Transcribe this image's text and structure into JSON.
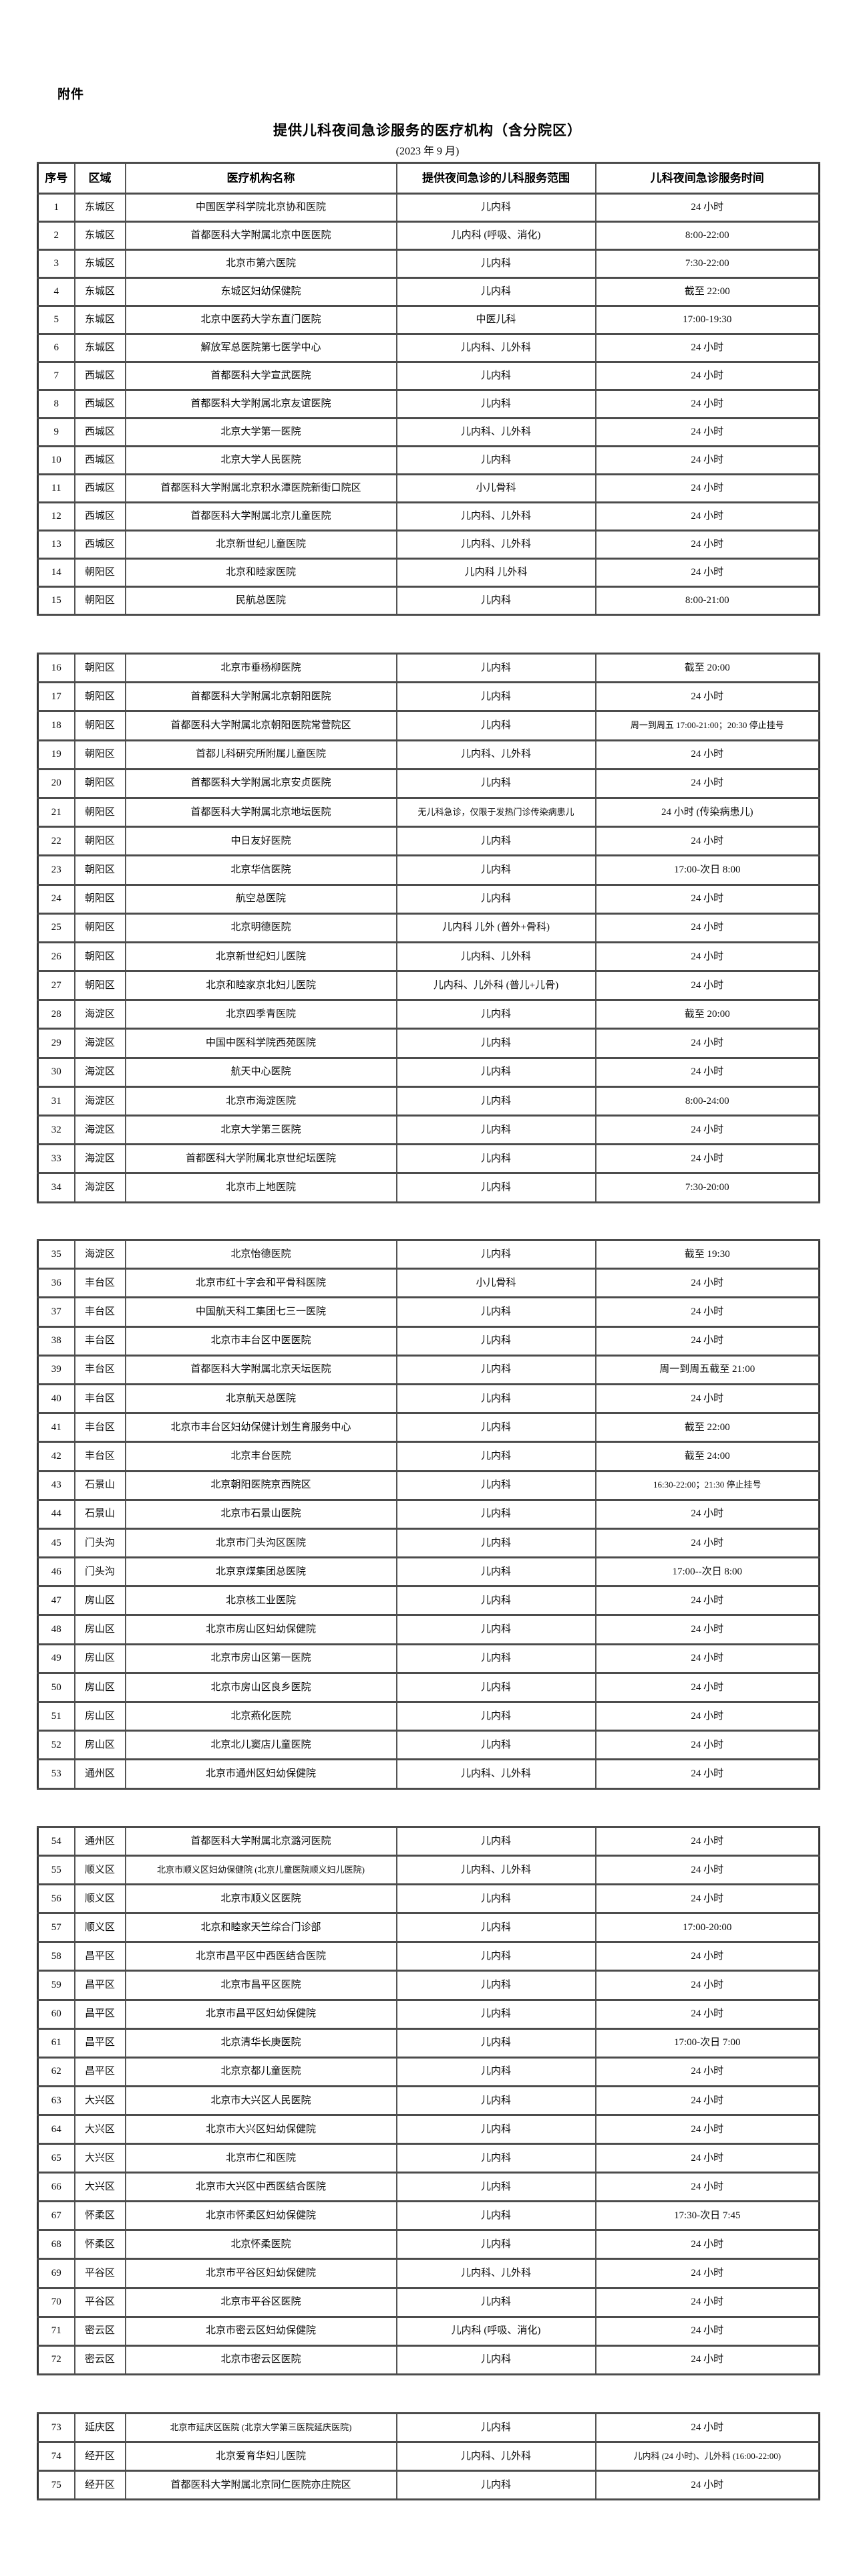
{
  "page": {
    "attachment_label": "附件",
    "title": "提供儿科夜间急诊服务的医疗机构（含分院区）",
    "subtitle": "(2023 年 9 月)"
  },
  "table": {
    "columns": [
      "序号",
      "区域",
      "医疗机构名称",
      "提供夜间急诊的儿科服务范围",
      "儿科夜间急诊服务时间"
    ],
    "sections": [
      {
        "has_header": true,
        "rows": [
          [
            "1",
            "东城区",
            "中国医学科学院北京协和医院",
            "儿内科",
            "24 小时"
          ],
          [
            "2",
            "东城区",
            "首都医科大学附属北京中医医院",
            "儿内科 (呼吸、消化)",
            "8:00-22:00"
          ],
          [
            "3",
            "东城区",
            "北京市第六医院",
            "儿内科",
            "7:30-22:00"
          ],
          [
            "4",
            "东城区",
            "东城区妇幼保健院",
            "儿内科",
            "截至 22:00"
          ],
          [
            "5",
            "东城区",
            "北京中医药大学东直门医院",
            "中医儿科",
            "17:00-19:30"
          ],
          [
            "6",
            "东城区",
            "解放军总医院第七医学中心",
            "儿内科、儿外科",
            "24 小时"
          ],
          [
            "7",
            "西城区",
            "首都医科大学宣武医院",
            "儿内科",
            "24 小时"
          ],
          [
            "8",
            "西城区",
            "首都医科大学附属北京友谊医院",
            "儿内科",
            "24 小时"
          ],
          [
            "9",
            "西城区",
            "北京大学第一医院",
            "儿内科、儿外科",
            "24 小时"
          ],
          [
            "10",
            "西城区",
            "北京大学人民医院",
            "儿内科",
            "24 小时"
          ],
          [
            "11",
            "西城区",
            "首都医科大学附属北京积水潭医院新街口院区",
            "小儿骨科",
            "24 小时"
          ],
          [
            "12",
            "西城区",
            "首都医科大学附属北京儿童医院",
            "儿内科、儿外科",
            "24 小时"
          ],
          [
            "13",
            "西城区",
            "北京新世纪儿童医院",
            "儿内科、儿外科",
            "24 小时"
          ],
          [
            "14",
            "朝阳区",
            "北京和睦家医院",
            "儿内科 儿外科",
            "24 小时"
          ],
          [
            "15",
            "朝阳区",
            "民航总医院",
            "儿内科",
            "8:00-21:00"
          ]
        ]
      },
      {
        "has_header": false,
        "rows": [
          [
            "16",
            "朝阳区",
            "北京市垂杨柳医院",
            "儿内科",
            "截至 20:00"
          ],
          [
            "17",
            "朝阳区",
            "首都医科大学附属北京朝阳医院",
            "儿内科",
            "24 小时"
          ],
          [
            "18",
            "朝阳区",
            "首都医科大学附属北京朝阳医院常营院区",
            "儿内科",
            "周一到周五 17:00-21:00；20:30 停止挂号"
          ],
          [
            "19",
            "朝阳区",
            "首都儿科研究所附属儿童医院",
            "儿内科、儿外科",
            "24 小时"
          ],
          [
            "20",
            "朝阳区",
            "首都医科大学附属北京安贞医院",
            "儿内科",
            "24 小时"
          ],
          [
            "21",
            "朝阳区",
            "首都医科大学附属北京地坛医院",
            "无儿科急诊，仅限于发热门诊传染病患儿",
            "24 小时 (传染病患儿)"
          ],
          [
            "22",
            "朝阳区",
            "中日友好医院",
            "儿内科",
            "24 小时"
          ],
          [
            "23",
            "朝阳区",
            "北京华信医院",
            "儿内科",
            "17:00-次日 8:00"
          ],
          [
            "24",
            "朝阳区",
            "航空总医院",
            "儿内科",
            "24 小时"
          ],
          [
            "25",
            "朝阳区",
            "北京明德医院",
            "儿内科 儿外 (普外+骨科)",
            "24 小时"
          ],
          [
            "26",
            "朝阳区",
            "北京新世纪妇儿医院",
            "儿内科、儿外科",
            "24 小时"
          ],
          [
            "27",
            "朝阳区",
            "北京和睦家京北妇儿医院",
            "儿内科、儿外科 (普儿+儿骨)",
            "24 小时"
          ],
          [
            "28",
            "海淀区",
            "北京四季青医院",
            "儿内科",
            "截至 20:00"
          ],
          [
            "29",
            "海淀区",
            "中国中医科学院西苑医院",
            "儿内科",
            "24 小时"
          ],
          [
            "30",
            "海淀区",
            "航天中心医院",
            "儿内科",
            "24 小时"
          ],
          [
            "31",
            "海淀区",
            "北京市海淀医院",
            "儿内科",
            "8:00-24:00"
          ],
          [
            "32",
            "海淀区",
            "北京大学第三医院",
            "儿内科",
            "24 小时"
          ],
          [
            "33",
            "海淀区",
            "首都医科大学附属北京世纪坛医院",
            "儿内科",
            "24 小时"
          ],
          [
            "34",
            "海淀区",
            "北京市上地医院",
            "儿内科",
            "7:30-20:00"
          ]
        ]
      },
      {
        "has_header": false,
        "rows": [
          [
            "35",
            "海淀区",
            "北京怡德医院",
            "儿内科",
            "截至 19:30"
          ],
          [
            "36",
            "丰台区",
            "北京市红十字会和平骨科医院",
            "小儿骨科",
            "24 小时"
          ],
          [
            "37",
            "丰台区",
            "中国航天科工集团七三一医院",
            "儿内科",
            "24 小时"
          ],
          [
            "38",
            "丰台区",
            "北京市丰台区中医医院",
            "儿内科",
            "24 小时"
          ],
          [
            "39",
            "丰台区",
            "首都医科大学附属北京天坛医院",
            "儿内科",
            "周一到周五截至 21:00"
          ],
          [
            "40",
            "丰台区",
            "北京航天总医院",
            "儿内科",
            "24 小时"
          ],
          [
            "41",
            "丰台区",
            "北京市丰台区妇幼保健计划生育服务中心",
            "儿内科",
            "截至 22:00"
          ],
          [
            "42",
            "丰台区",
            "北京丰台医院",
            "儿内科",
            "截至 24:00"
          ],
          [
            "43",
            "石景山",
            "北京朝阳医院京西院区",
            "儿内科",
            "16:30-22:00；21:30 停止挂号"
          ],
          [
            "44",
            "石景山",
            "北京市石景山医院",
            "儿内科",
            "24 小时"
          ],
          [
            "45",
            "门头沟",
            "北京市门头沟区医院",
            "儿内科",
            "24 小时"
          ],
          [
            "46",
            "门头沟",
            "北京京煤集团总医院",
            "儿内科",
            "17:00--次日 8:00"
          ],
          [
            "47",
            "房山区",
            "北京核工业医院",
            "儿内科",
            "24 小时"
          ],
          [
            "48",
            "房山区",
            "北京市房山区妇幼保健院",
            "儿内科",
            "24 小时"
          ],
          [
            "49",
            "房山区",
            "北京市房山区第一医院",
            "儿内科",
            "24 小时"
          ],
          [
            "50",
            "房山区",
            "北京市房山区良乡医院",
            "儿内科",
            "24 小时"
          ],
          [
            "51",
            "房山区",
            "北京燕化医院",
            "儿内科",
            "24 小时"
          ],
          [
            "52",
            "房山区",
            "北京北儿窦店儿童医院",
            "儿内科",
            "24 小时"
          ],
          [
            "53",
            "通州区",
            "北京市通州区妇幼保健院",
            "儿内科、儿外科",
            "24 小时"
          ]
        ]
      },
      {
        "has_header": false,
        "rows": [
          [
            "54",
            "通州区",
            "首都医科大学附属北京潞河医院",
            "儿内科",
            "24 小时"
          ],
          [
            "55",
            "顺义区",
            "北京市顺义区妇幼保健院 (北京儿童医院顺义妇儿医院)",
            "儿内科、儿外科",
            "24 小时"
          ],
          [
            "56",
            "顺义区",
            "北京市顺义区医院",
            "儿内科",
            "24 小时"
          ],
          [
            "57",
            "顺义区",
            "北京和睦家天竺综合门诊部",
            "儿内科",
            "17:00-20:00"
          ],
          [
            "58",
            "昌平区",
            "北京市昌平区中西医结合医院",
            "儿内科",
            "24 小时"
          ],
          [
            "59",
            "昌平区",
            "北京市昌平区医院",
            "儿内科",
            "24 小时"
          ],
          [
            "60",
            "昌平区",
            "北京市昌平区妇幼保健院",
            "儿内科",
            "24 小时"
          ],
          [
            "61",
            "昌平区",
            "北京清华长庚医院",
            "儿内科",
            "17:00-次日 7:00"
          ],
          [
            "62",
            "昌平区",
            "北京京都儿童医院",
            "儿内科",
            "24 小时"
          ],
          [
            "63",
            "大兴区",
            "北京市大兴区人民医院",
            "儿内科",
            "24 小时"
          ],
          [
            "64",
            "大兴区",
            "北京市大兴区妇幼保健院",
            "儿内科",
            "24 小时"
          ],
          [
            "65",
            "大兴区",
            "北京市仁和医院",
            "儿内科",
            "24 小时"
          ],
          [
            "66",
            "大兴区",
            "北京市大兴区中西医结合医院",
            "儿内科",
            "24 小时"
          ],
          [
            "67",
            "怀柔区",
            "北京市怀柔区妇幼保健院",
            "儿内科",
            "17:30-次日 7:45"
          ],
          [
            "68",
            "怀柔区",
            "北京怀柔医院",
            "儿内科",
            "24 小时"
          ],
          [
            "69",
            "平谷区",
            "北京市平谷区妇幼保健院",
            "儿内科、儿外科",
            "24 小时"
          ],
          [
            "70",
            "平谷区",
            "北京市平谷区医院",
            "儿内科",
            "24 小时"
          ],
          [
            "71",
            "密云区",
            "北京市密云区妇幼保健院",
            "儿内科 (呼吸、消化)",
            "24 小时"
          ],
          [
            "72",
            "密云区",
            "北京市密云区医院",
            "儿内科",
            "24 小时"
          ]
        ]
      },
      {
        "has_header": false,
        "rows": [
          [
            "73",
            "延庆区",
            "北京市延庆区医院 (北京大学第三医院延庆医院)",
            "儿内科",
            "24 小时"
          ],
          [
            "74",
            "经开区",
            "北京爱育华妇儿医院",
            "儿内科、儿外科",
            "儿内科 (24 小时)、儿外科 (16:00-22:00)"
          ],
          [
            "75",
            "经开区",
            "首都医科大学附属北京同仁医院亦庄院区",
            "儿内科",
            "24 小时"
          ]
        ]
      }
    ]
  }
}
